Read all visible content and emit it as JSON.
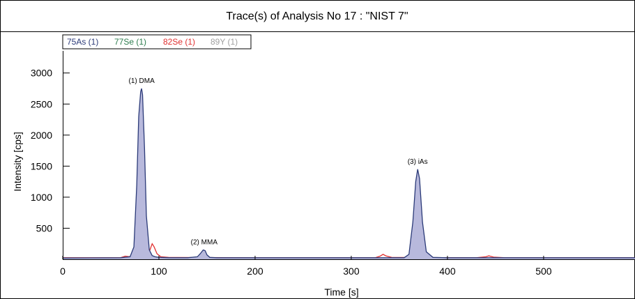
{
  "chart_data": {
    "type": "line",
    "title": "Trace(s) of Analysis No 17 : \"NIST 7\"",
    "xlabel": "Time [s]",
    "ylabel": "Intensity [cps]",
    "xlim": [
      0,
      595
    ],
    "ylim": [
      0,
      3300
    ],
    "xticks": [
      0,
      100,
      200,
      300,
      400,
      500
    ],
    "yticks": [
      500,
      1000,
      1500,
      2000,
      2500,
      3000
    ],
    "grid": false,
    "legend_position": "top-left",
    "series": [
      {
        "name": "75As (1)",
        "color": "#2b3a78",
        "fill": "#b8b9dc",
        "x": [
          0,
          60,
          70,
          74,
          77,
          79,
          81,
          82,
          83,
          85,
          87,
          90,
          93,
          96,
          100,
          110,
          130,
          140,
          143,
          146,
          148,
          150,
          153,
          160,
          200,
          300,
          355,
          360,
          364,
          367,
          369,
          371,
          374,
          378,
          385,
          400,
          500,
          595
        ],
        "y": [
          20,
          25,
          40,
          200,
          1200,
          2300,
          2700,
          2750,
          2650,
          1800,
          700,
          150,
          60,
          40,
          30,
          25,
          25,
          40,
          90,
          150,
          140,
          70,
          30,
          25,
          25,
          25,
          25,
          80,
          600,
          1250,
          1450,
          1300,
          600,
          120,
          30,
          25,
          25,
          25
        ]
      },
      {
        "name": "77Se (1)",
        "color": "#2e7d4f",
        "x": [
          0,
          100,
          200,
          300,
          400,
          500,
          595
        ],
        "y": [
          12,
          14,
          13,
          12,
          13,
          12,
          13
        ]
      },
      {
        "name": "82Se (1)",
        "color": "#e03030",
        "x": [
          0,
          60,
          65,
          70,
          75,
          85,
          90,
          93,
          95,
          98,
          102,
          110,
          200,
          325,
          330,
          333,
          336,
          342,
          430,
          440,
          443,
          448,
          460,
          595
        ],
        "y": [
          25,
          25,
          50,
          40,
          30,
          40,
          120,
          250,
          200,
          90,
          40,
          30,
          25,
          25,
          50,
          80,
          55,
          30,
          25,
          40,
          55,
          35,
          25,
          25
        ]
      },
      {
        "name": "89Y (1)",
        "color": "#a0a0a0",
        "x": [
          0,
          200,
          400,
          595
        ],
        "y": [
          8,
          8,
          8,
          8
        ]
      }
    ],
    "annotations": [
      {
        "text": "(1) DMA",
        "x": 82,
        "y": 2750
      },
      {
        "text": "(2) MMA",
        "x": 147,
        "y": 150
      },
      {
        "text": "(3) iAs",
        "x": 369,
        "y": 1450
      }
    ]
  }
}
